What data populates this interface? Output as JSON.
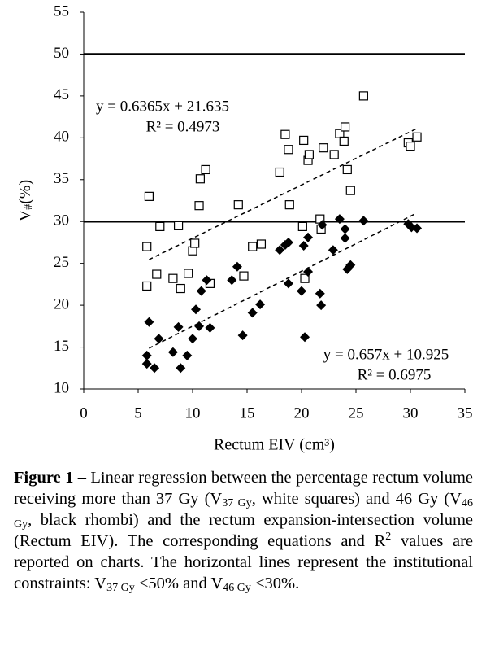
{
  "chart_data": {
    "type": "scatter",
    "xlabel": "Rectum EIV (cm³)",
    "ylabel": {
      "main": "V",
      "sub": "#",
      "unit": "(%)"
    },
    "xlim": [
      0,
      35
    ],
    "xticks": [
      0,
      5,
      10,
      15,
      20,
      25,
      30,
      35
    ],
    "ylim": [
      10,
      55
    ],
    "yticks": [
      10,
      15,
      20,
      25,
      30,
      35,
      40,
      45,
      50,
      55
    ],
    "hlines": [
      50,
      30
    ],
    "series": [
      {
        "marker": "square",
        "color": "#000000",
        "x": [
          5.8,
          6,
          5.8,
          6.7,
          7,
          8.2,
          8.7,
          8.9,
          9.6,
          10,
          10.2,
          10.6,
          10.7,
          11.2,
          11.6,
          14.2,
          14.7,
          15.5,
          16.3,
          18,
          18.5,
          18.8,
          18.9,
          20.1,
          20.2,
          20.3,
          20.6,
          20.7,
          21.7,
          21.8,
          22,
          23,
          23.5,
          23.9,
          24,
          24.2,
          24.5,
          25.7,
          29.8,
          30,
          30.6
        ],
        "values": [
          27,
          33,
          22.3,
          23.7,
          29.4,
          23.2,
          29.5,
          22,
          23.8,
          26.5,
          27.4,
          31.9,
          35.1,
          36.2,
          22.6,
          32,
          23.5,
          27,
          27.3,
          35.9,
          40.4,
          38.6,
          32,
          29.4,
          39.7,
          23.2,
          37.3,
          38,
          30.3,
          29.1,
          38.8,
          38,
          40.5,
          39.6,
          41.3,
          36.2,
          33.7,
          45,
          39.4,
          39,
          40.1
        ]
      },
      {
        "marker": "diamond",
        "color": "#000000",
        "x": [
          5.8,
          5.8,
          6,
          6.5,
          6.9,
          8.2,
          8.7,
          8.9,
          9.5,
          10,
          10.3,
          10.6,
          10.8,
          11.3,
          11.6,
          13.6,
          14.1,
          14.6,
          15.5,
          16.2,
          18,
          18.5,
          18.8,
          18.8,
          20,
          20.2,
          20.3,
          20.6,
          20.6,
          21.7,
          21.8,
          21.9,
          22.9,
          23.5,
          24,
          24,
          24.2,
          24.5,
          25.7,
          29.8,
          30.1,
          30.6
        ],
        "values": [
          14,
          13,
          18,
          12.5,
          16,
          14.4,
          17.4,
          12.5,
          14,
          16,
          19.5,
          17.5,
          21.7,
          23,
          17.3,
          23,
          24.6,
          16.4,
          19.1,
          20.1,
          26.6,
          27.2,
          27.5,
          22.6,
          21.7,
          27.1,
          16.2,
          28.1,
          24,
          21.4,
          20,
          29.6,
          26.6,
          30.3,
          29.1,
          28,
          24.3,
          24.8,
          30.1,
          29.7,
          29.3,
          29.2
        ]
      },
      {
        "marker": "dashed-line",
        "color": "#000000",
        "x": [
          6,
          30.5
        ],
        "values": [
          25.454,
          41.048
        ]
      },
      {
        "marker": "dashed-line",
        "color": "#000000",
        "x": [
          6,
          30.5
        ],
        "values": [
          14.867,
          30.96
        ]
      }
    ],
    "annotations": [
      "y = 0.6365x + 21.635",
      "R² = 0.4973",
      "y = 0.657x + 10.925",
      "R² = 0.6975"
    ]
  },
  "caption": [
    {
      "text": "Figure 1",
      "style": "bold"
    },
    {
      "text": " – Linear regression between the percentage rectum volume receiving more than 37 Gy (V",
      "style": "normal"
    },
    {
      "text": "37 Gy",
      "style": "sub"
    },
    {
      "text": ", white squares) and 46 Gy (V",
      "style": "normal"
    },
    {
      "text": "46 Gy",
      "style": "sub"
    },
    {
      "text": ", black rhombi) and the rectum expansion-intersection volume (Rectum EIV). The corresponding equations and R",
      "style": "normal"
    },
    {
      "text": "2",
      "style": "sup"
    },
    {
      "text": " values are reported on charts. The horizontal lines represent the institutional constraints: V",
      "style": "normal"
    },
    {
      "text": "37 Gy",
      "style": "sub"
    },
    {
      "text": " <50% and V",
      "style": "normal"
    },
    {
      "text": "46 Gy",
      "style": "sub"
    },
    {
      "text": " <30%.",
      "style": "normal"
    }
  ]
}
